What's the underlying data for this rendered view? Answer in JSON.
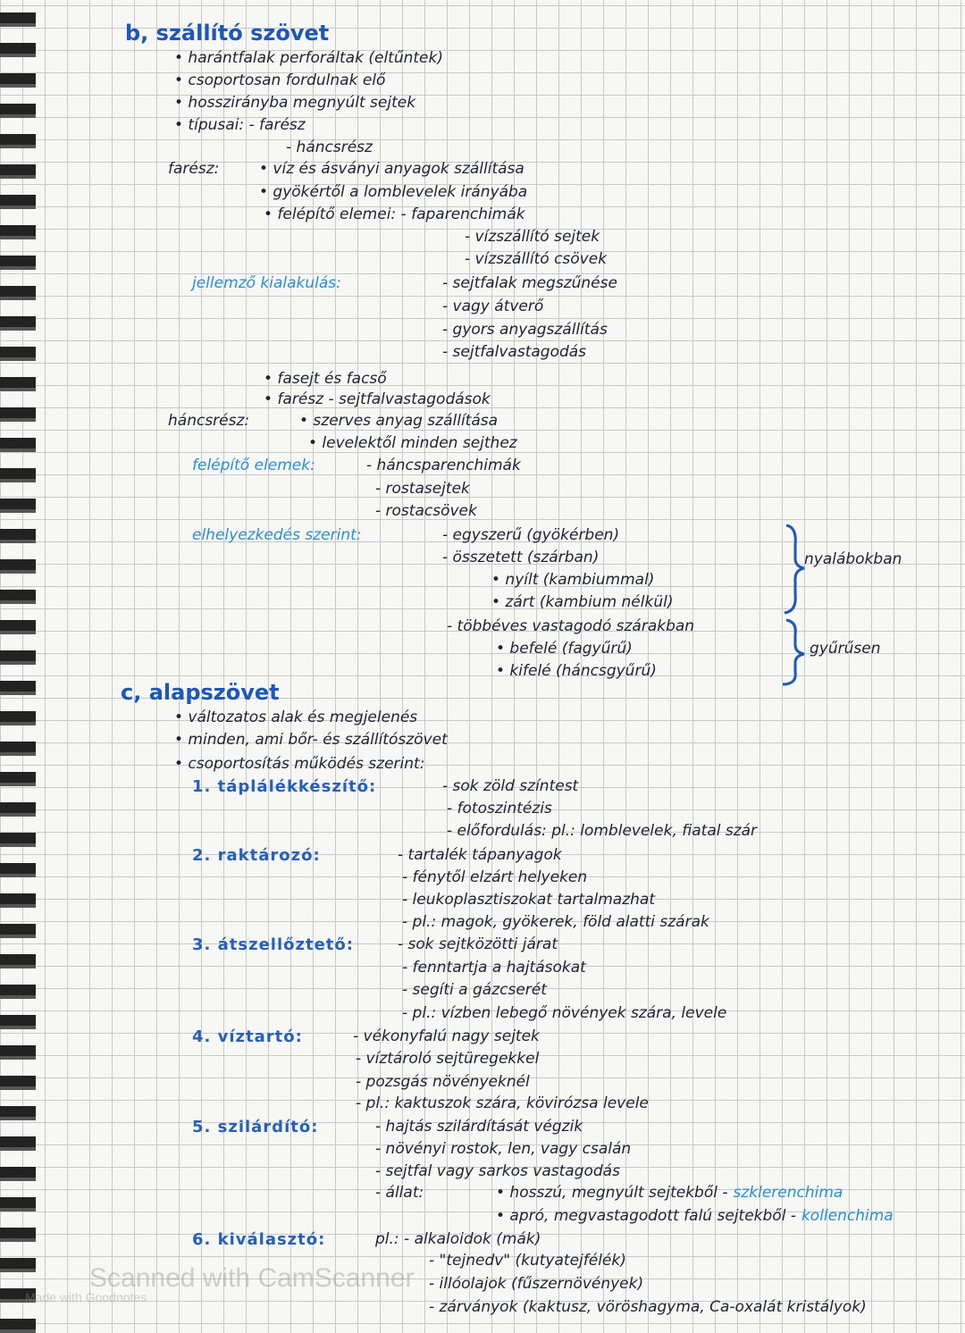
{
  "lines": [
    {
      "heading": "b, szállító szövet"
    },
    {
      "text": "• harántfalak perforáltak (eltűntek)"
    },
    {
      "text": "• csoportosan fordulnak elő"
    },
    {
      "text": "• hosszirányba megnyúlt sejtek"
    },
    {
      "text": "• típusai: - farész"
    },
    {
      "text": "- háncsrész"
    },
    {
      "label": "farész:",
      "text": "• víz és ásványi anyagok szállítása"
    },
    {
      "text": "• gyökértől a lomblevelek irányába"
    },
    {
      "text": "• felépítő elemei: - faparenchimák"
    },
    {
      "text": "- vízszállító sejtek"
    },
    {
      "text": "- vízszállító csövek"
    },
    {
      "label": "jellemző kialakulás:",
      "text": "- sejtfalak megszűnése"
    },
    {
      "text": "- vagy átverő"
    },
    {
      "text": "- gyors anyagszállítás"
    },
    {
      "text": "- sejtfalvastagodás"
    },
    {
      "text": "• fasejt és facső"
    },
    {
      "text": "• farész - sejtfalvastagodások"
    },
    {
      "label": "háncsrész:",
      "text": "• szerves anyag szállítása"
    },
    {
      "text": "• levelektől minden sejthez"
    },
    {
      "label": "felépítő elemek:",
      "text": "- háncsparenchimák"
    },
    {
      "text": "- rostasejtek"
    },
    {
      "text": "- rostacsövek"
    },
    {
      "label": "elhelyezkedés szerint:",
      "text": "- egyszerű (gyökérben)"
    },
    {
      "text": "- összetett (szárban)"
    },
    {
      "text": "• nyílt (kambiummal)"
    },
    {
      "text": "• zárt (kambium nélkül)"
    },
    {
      "text": "- többéves vastagodó szárakban"
    },
    {
      "text": "• befelé (fagyűrű)"
    },
    {
      "text": "• kifelé (háncsgyűrű)"
    },
    {
      "heading": "c, alapszövet"
    },
    {
      "text": "• változatos alak és megjelenés"
    },
    {
      "text": "• minden, ami bőr- és szállítószövet"
    },
    {
      "text": "• csoportosítás működés szerint:"
    },
    {
      "label": "1. táplálékkészítő:",
      "text": "- sok zöld színtest"
    },
    {
      "text": "- fotoszintézis"
    },
    {
      "text": "- előfordulás: pl.: lomblevelek, fiatal szár"
    },
    {
      "label": "2. raktározó:",
      "text": "- tartalék tápanyagok"
    },
    {
      "text": "- fénytől elzárt helyeken"
    },
    {
      "text": "- leukoplasztiszokat tartalmazhat"
    },
    {
      "text": "- pl.: magok, gyökerek, föld alatti szárak"
    },
    {
      "label": "3. átszellőztető:",
      "text": "- sok sejtközötti járat"
    },
    {
      "text": "- fenntartja a hajtásokat"
    },
    {
      "text": "- segíti a gázcserét"
    },
    {
      "text": "- pl.: vízben lebegő növények szára, levele"
    },
    {
      "label": "4. víztartó:",
      "text": "- vékonyfalú nagy sejtek"
    },
    {
      "text": "- víztároló sejtüregekkel"
    },
    {
      "text": "- pozsgás növényeknél"
    },
    {
      "text": "- pl.: kaktuszok szára, kövirózsa levele"
    },
    {
      "label": "5. szilárdító:",
      "text": "- hajtás szilárdítását végzik"
    },
    {
      "text": "- növényi rostok, len, vagy csalán"
    },
    {
      "text": "- sejtfal vagy sarkos vastagodás"
    },
    {
      "label": "- állat:",
      "text": "• hosszú, megnyúlt sejtekből -",
      "term": "szklerenchima"
    },
    {
      "text": "• apró, megvastagodott falú sejtekből -",
      "term": "kollenchima"
    },
    {
      "label": "6. kiválasztó:",
      "text": "pl.: - alkaloidok (mák)"
    },
    {
      "text": "- \"tejnedv\" (kutyatejfélék)"
    },
    {
      "text": "- illóolajok (fűszernövények)"
    },
    {
      "text": "- zárványok (kaktusz, vöröshagyma, Ca-oxalát kristályok)"
    }
  ],
  "side_notes": [
    "nyalábokban",
    "gyűrűsen"
  ],
  "watermark": {
    "scanner": "Scanned with CamScanner",
    "app": "Made with Goodnotes"
  }
}
